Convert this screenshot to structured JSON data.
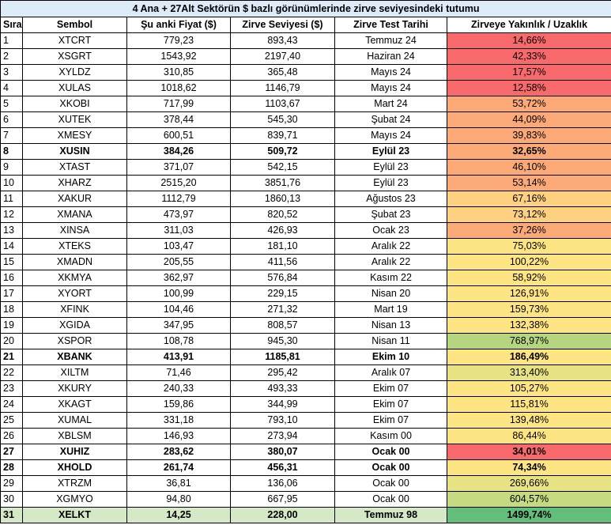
{
  "title": "4 Ana + 27Alt Sektörün $ bazlı görünümlerinde zirve seviyesindeki tutumu",
  "headers": [
    "Sıra",
    "Sembol",
    "Şu anki Fiyat ($)",
    "Zirve Seviyesi ($)",
    "Zirve Test Tarihi",
    "Zirveye Yakınlık /  Uzaklık"
  ],
  "rows": [
    {
      "no": "1",
      "symbol": "XTCRT",
      "price": "779,23",
      "peak": "893,43",
      "date": "Temmuz 24",
      "ratio": "14,66%",
      "color": "#f8696b",
      "bold": false
    },
    {
      "no": "2",
      "symbol": "XSGRT",
      "price": "1543,92",
      "peak": "2197,40",
      "date": "Haziran 24",
      "ratio": "42,33%",
      "color": "#f8696b",
      "bold": false
    },
    {
      "no": "3",
      "symbol": "XYLDZ",
      "price": "310,85",
      "peak": "365,48",
      "date": "Mayıs 24",
      "ratio": "17,57%",
      "color": "#f8696b",
      "bold": false
    },
    {
      "no": "4",
      "symbol": "XULAS",
      "price": "1018,62",
      "peak": "1146,79",
      "date": "Mayıs 24",
      "ratio": "12,58%",
      "color": "#f8696b",
      "bold": false
    },
    {
      "no": "5",
      "symbol": "XKOBI",
      "price": "717,99",
      "peak": "1103,67",
      "date": "Mart 24",
      "ratio": "53,72%",
      "color": "#fbaa77",
      "bold": false
    },
    {
      "no": "6",
      "symbol": "XUTEK",
      "price": "378,44",
      "peak": "545,30",
      "date": "Şubat 24",
      "ratio": "44,09%",
      "color": "#fbaa77",
      "bold": false
    },
    {
      "no": "7",
      "symbol": "XMESY",
      "price": "600,51",
      "peak": "839,71",
      "date": "Mayıs 24",
      "ratio": "39,83%",
      "color": "#fbaa77",
      "bold": false
    },
    {
      "no": "8",
      "symbol": "XUSIN",
      "price": "384,26",
      "peak": "509,72",
      "date": "Eylül 23",
      "ratio": "32,65%",
      "color": "#fbaa77",
      "bold": true
    },
    {
      "no": "9",
      "symbol": "XTAST",
      "price": "371,07",
      "peak": "542,15",
      "date": "Eylül 23",
      "ratio": "46,10%",
      "color": "#fbaa77",
      "bold": false
    },
    {
      "no": "10",
      "symbol": "XHARZ",
      "price": "2515,20",
      "peak": "3851,76",
      "date": "Eylül 23",
      "ratio": "53,14%",
      "color": "#fbaa77",
      "bold": false
    },
    {
      "no": "11",
      "symbol": "XAKUR",
      "price": "1112,79",
      "peak": "1860,13",
      "date": "Ağustos 23",
      "ratio": "67,16%",
      "color": "#fdd17f",
      "bold": false
    },
    {
      "no": "12",
      "symbol": "XMANA",
      "price": "473,97",
      "peak": "820,52",
      "date": "Şubat 23",
      "ratio": "73,12%",
      "color": "#fdd17f",
      "bold": false
    },
    {
      "no": "13",
      "symbol": "XINSA",
      "price": "311,03",
      "peak": "426,93",
      "date": "Ocak 23",
      "ratio": "37,26%",
      "color": "#fbaa77",
      "bold": false
    },
    {
      "no": "14",
      "symbol": "XTEKS",
      "price": "103,47",
      "peak": "181,10",
      "date": "Aralık 22",
      "ratio": "75,03%",
      "color": "#fee583",
      "bold": false
    },
    {
      "no": "15",
      "symbol": "XMADN",
      "price": "205,55",
      "peak": "411,56",
      "date": "Aralık 22",
      "ratio": "100,22%",
      "color": "#fee583",
      "bold": false
    },
    {
      "no": "16",
      "symbol": "XKMYA",
      "price": "362,97",
      "peak": "576,84",
      "date": "Kasım 22",
      "ratio": "58,92%",
      "color": "#fee583",
      "bold": false
    },
    {
      "no": "17",
      "symbol": "XYORT",
      "price": "100,99",
      "peak": "229,15",
      "date": "Nisan 20",
      "ratio": "126,91%",
      "color": "#fee583",
      "bold": false
    },
    {
      "no": "18",
      "symbol": "XFINK",
      "price": "104,46",
      "peak": "271,32",
      "date": "Mart 19",
      "ratio": "159,73%",
      "color": "#fee583",
      "bold": false
    },
    {
      "no": "19",
      "symbol": "XGIDA",
      "price": "347,95",
      "peak": "808,57",
      "date": "Nisan 13",
      "ratio": "132,38%",
      "color": "#fee583",
      "bold": false
    },
    {
      "no": "20",
      "symbol": "XSPOR",
      "price": "108,78",
      "peak": "945,30",
      "date": "Nisan 11",
      "ratio": "768,97%",
      "color": "#b5d67e",
      "bold": false
    },
    {
      "no": "21",
      "symbol": "XBANK",
      "price": "413,91",
      "peak": "1185,81",
      "date": "Ekim 10",
      "ratio": "186,49%",
      "color": "#fee583",
      "bold": true
    },
    {
      "no": "22",
      "symbol": "XILTM",
      "price": "71,46",
      "peak": "295,42",
      "date": "Aralık 07",
      "ratio": "313,40%",
      "color": "#e8e382",
      "bold": false
    },
    {
      "no": "23",
      "symbol": "XKURY",
      "price": "240,33",
      "peak": "493,33",
      "date": "Ekim 07",
      "ratio": "105,27%",
      "color": "#fee583",
      "bold": false
    },
    {
      "no": "24",
      "symbol": "XKAGT",
      "price": "159,86",
      "peak": "344,99",
      "date": "Ekim 07",
      "ratio": "115,81%",
      "color": "#fee583",
      "bold": false
    },
    {
      "no": "25",
      "symbol": "XUMAL",
      "price": "331,18",
      "peak": "793,10",
      "date": "Ekim 07",
      "ratio": "139,48%",
      "color": "#fee583",
      "bold": false
    },
    {
      "no": "26",
      "symbol": "XBLSM",
      "price": "146,93",
      "peak": "273,94",
      "date": "Kasım 00",
      "ratio": "86,44%",
      "color": "#fee583",
      "bold": false
    },
    {
      "no": "27",
      "symbol": "XUHIZ",
      "price": "283,62",
      "peak": "380,07",
      "date": "Ocak 00",
      "ratio": "34,01%",
      "color": "#f8696b",
      "bold": true
    },
    {
      "no": "28",
      "symbol": "XHOLD",
      "price": "261,74",
      "peak": "456,31",
      "date": "Ocak 00",
      "ratio": "74,34%",
      "color": "#fee583",
      "bold": true
    },
    {
      "no": "29",
      "symbol": "XTRZM",
      "price": "36,81",
      "peak": "136,06",
      "date": "Ocak 00",
      "ratio": "269,66%",
      "color": "#e8e382",
      "bold": false
    },
    {
      "no": "30",
      "symbol": "XGMYO",
      "price": "94,80",
      "peak": "667,95",
      "date": "Ocak 00",
      "ratio": "604,57%",
      "color": "#c6db81",
      "bold": false
    },
    {
      "no": "31",
      "symbol": "XELKT",
      "price": "14,25",
      "peak": "228,00",
      "date": "Temmuz 98",
      "ratio": "1499,74%",
      "color": "#63be7b",
      "bold": true,
      "row_color": "#d6e9c6"
    }
  ]
}
